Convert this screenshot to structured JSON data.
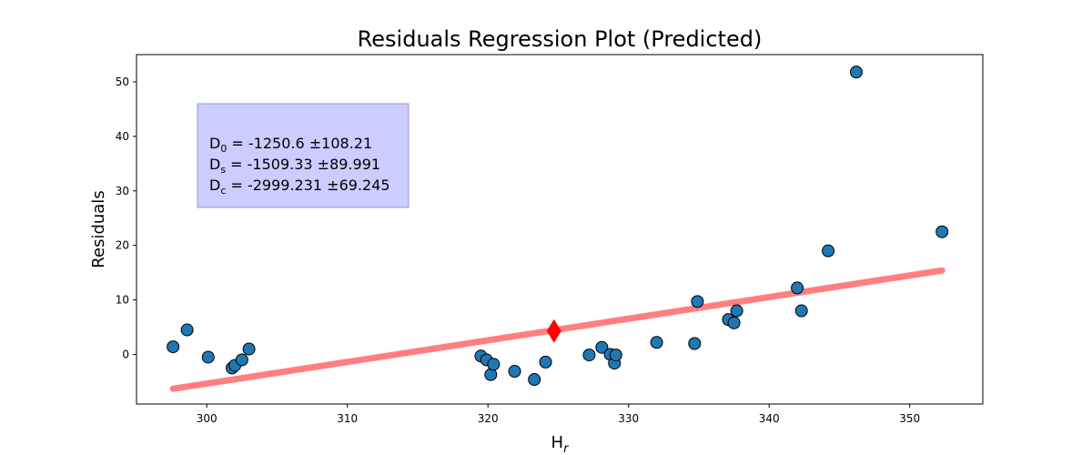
{
  "chart_data": {
    "type": "scatter",
    "title": "Residuals Regression Plot (Predicted)",
    "xlabel": {
      "base": "H",
      "sub": "r"
    },
    "ylabel": "Residuals",
    "xlim": [
      295.0,
      355.2
    ],
    "ylim": [
      -9.1,
      55.0
    ],
    "xticks": [
      300,
      310,
      320,
      330,
      340,
      350
    ],
    "yticks": [
      0,
      10,
      20,
      30,
      40,
      50
    ],
    "grid": false,
    "points": [
      {
        "x": 297.6,
        "y": 1.4
      },
      {
        "x": 298.6,
        "y": 4.5
      },
      {
        "x": 300.1,
        "y": -0.5
      },
      {
        "x": 301.8,
        "y": -2.5
      },
      {
        "x": 302.0,
        "y": -2.0
      },
      {
        "x": 302.5,
        "y": -1.0
      },
      {
        "x": 303.0,
        "y": 1.0
      },
      {
        "x": 319.5,
        "y": -0.3
      },
      {
        "x": 319.9,
        "y": -1.0
      },
      {
        "x": 320.2,
        "y": -3.7
      },
      {
        "x": 320.4,
        "y": -1.8
      },
      {
        "x": 321.9,
        "y": -3.1
      },
      {
        "x": 323.3,
        "y": -4.6
      },
      {
        "x": 324.1,
        "y": -1.4
      },
      {
        "x": 327.2,
        "y": -0.1
      },
      {
        "x": 328.1,
        "y": 1.3
      },
      {
        "x": 328.7,
        "y": 0.0
      },
      {
        "x": 329.0,
        "y": -1.6
      },
      {
        "x": 329.1,
        "y": -0.1
      },
      {
        "x": 332.0,
        "y": 2.2
      },
      {
        "x": 334.7,
        "y": 2.0
      },
      {
        "x": 334.9,
        "y": 9.7
      },
      {
        "x": 337.1,
        "y": 6.4
      },
      {
        "x": 337.5,
        "y": 5.8
      },
      {
        "x": 337.7,
        "y": 8.0
      },
      {
        "x": 342.0,
        "y": 12.2
      },
      {
        "x": 342.3,
        "y": 8.0
      },
      {
        "x": 344.2,
        "y": 19.0
      },
      {
        "x": 346.2,
        "y": 51.8
      },
      {
        "x": 352.3,
        "y": 22.5
      }
    ],
    "regression_line": {
      "x": [
        297.6,
        352.3
      ],
      "y": [
        -6.3,
        15.4
      ],
      "color": "#ff7f7f"
    },
    "center_marker": {
      "x": 324.7,
      "y": 4.3,
      "shape": "diamond",
      "color": "#ff0000"
    },
    "point_color": "#1f77b4",
    "annotation": {
      "lines": [
        {
          "base": "D",
          "sub": "0",
          "text": " = -1250.6 ±108.21"
        },
        {
          "base": "D",
          "sub": "s",
          "text": " = -1509.33 ±89.991"
        },
        {
          "base": "D",
          "sub": "c",
          "text": " = -2999.231 ±69.245"
        }
      ],
      "background": "#ccccff",
      "placement": "upper-left"
    }
  }
}
